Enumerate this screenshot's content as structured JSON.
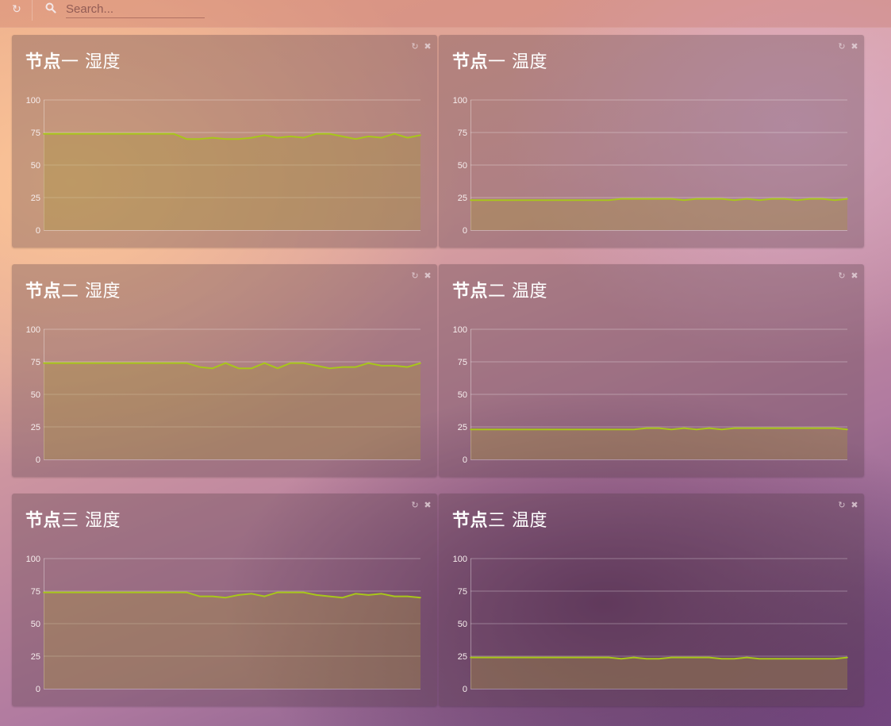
{
  "toolbar": {
    "refresh_icon": "refresh-icon",
    "search_icon": "search-icon",
    "search_placeholder": "Search..."
  },
  "colors": {
    "line": "#a8c61a",
    "area": "rgba(168,150,60,0.35)",
    "grid": "rgba(255,255,255,0.30)"
  },
  "panels": [
    {
      "title_bold": "节点",
      "title_rest": "一 湿度",
      "refresh_icon": "refresh-icon",
      "close_icon": "close-icon"
    },
    {
      "title_bold": "节点",
      "title_rest": "一 温度",
      "refresh_icon": "refresh-icon",
      "close_icon": "close-icon"
    },
    {
      "title_bold": "节点",
      "title_rest": "二 湿度",
      "refresh_icon": "refresh-icon",
      "close_icon": "close-icon"
    },
    {
      "title_bold": "节点",
      "title_rest": "二 温度",
      "refresh_icon": "refresh-icon",
      "close_icon": "close-icon"
    },
    {
      "title_bold": "节点",
      "title_rest": "三 湿度",
      "refresh_icon": "refresh-icon",
      "close_icon": "close-icon"
    },
    {
      "title_bold": "节点",
      "title_rest": "三 温度",
      "refresh_icon": "refresh-icon",
      "close_icon": "close-icon"
    }
  ],
  "chart_data": [
    {
      "type": "area",
      "title": "节点一 湿度",
      "ylim": [
        0,
        100
      ],
      "yticks": [
        "0",
        "25",
        "50",
        "75",
        "100"
      ],
      "grid": true,
      "values": [
        74,
        74,
        74,
        74,
        74,
        74,
        74,
        74,
        74,
        74,
        74,
        70,
        70,
        71,
        70,
        70,
        71,
        73,
        71,
        72,
        71,
        74,
        74,
        72,
        70,
        72,
        71,
        74,
        71,
        73
      ]
    },
    {
      "type": "area",
      "title": "节点一 温度",
      "ylim": [
        0,
        100
      ],
      "yticks": [
        "0",
        "25",
        "50",
        "75",
        "100"
      ],
      "grid": true,
      "values": [
        23,
        23,
        23,
        23,
        23,
        23,
        23,
        23,
        23,
        23,
        23,
        23,
        24,
        24,
        24,
        24,
        24,
        23,
        24,
        24,
        24,
        23,
        24,
        23,
        24,
        24,
        23,
        24,
        24,
        23,
        24
      ]
    },
    {
      "type": "area",
      "title": "节点二 湿度",
      "ylim": [
        0,
        100
      ],
      "yticks": [
        "0",
        "25",
        "50",
        "75",
        "100"
      ],
      "grid": true,
      "values": [
        74,
        74,
        74,
        74,
        74,
        74,
        74,
        74,
        74,
        74,
        74,
        74,
        71,
        70,
        74,
        70,
        70,
        74,
        70,
        74,
        74,
        72,
        70,
        71,
        71,
        74,
        72,
        72,
        71,
        74
      ]
    },
    {
      "type": "area",
      "title": "节点二 温度",
      "ylim": [
        0,
        100
      ],
      "yticks": [
        "0",
        "25",
        "50",
        "75",
        "100"
      ],
      "grid": true,
      "values": [
        23,
        23,
        23,
        23,
        23,
        23,
        23,
        23,
        23,
        23,
        23,
        23,
        23,
        23,
        24,
        24,
        23,
        24,
        23,
        24,
        23,
        24,
        24,
        24,
        24,
        24,
        24,
        24,
        24,
        24,
        23
      ]
    },
    {
      "type": "area",
      "title": "节点三 湿度",
      "ylim": [
        0,
        100
      ],
      "yticks": [
        "0",
        "25",
        "50",
        "75",
        "100"
      ],
      "grid": true,
      "values": [
        74,
        74,
        74,
        74,
        74,
        74,
        74,
        74,
        74,
        74,
        74,
        74,
        71,
        71,
        70,
        72,
        73,
        71,
        74,
        74,
        74,
        72,
        71,
        70,
        73,
        72,
        73,
        71,
        71,
        70
      ]
    },
    {
      "type": "area",
      "title": "节点三 温度",
      "ylim": [
        0,
        100
      ],
      "yticks": [
        "0",
        "25",
        "50",
        "75",
        "100"
      ],
      "grid": true,
      "values": [
        24,
        24,
        24,
        24,
        24,
        24,
        24,
        24,
        24,
        24,
        24,
        24,
        23,
        24,
        23,
        23,
        24,
        24,
        24,
        24,
        23,
        23,
        24,
        23,
        23,
        23,
        23,
        23,
        23,
        23,
        24
      ]
    }
  ]
}
